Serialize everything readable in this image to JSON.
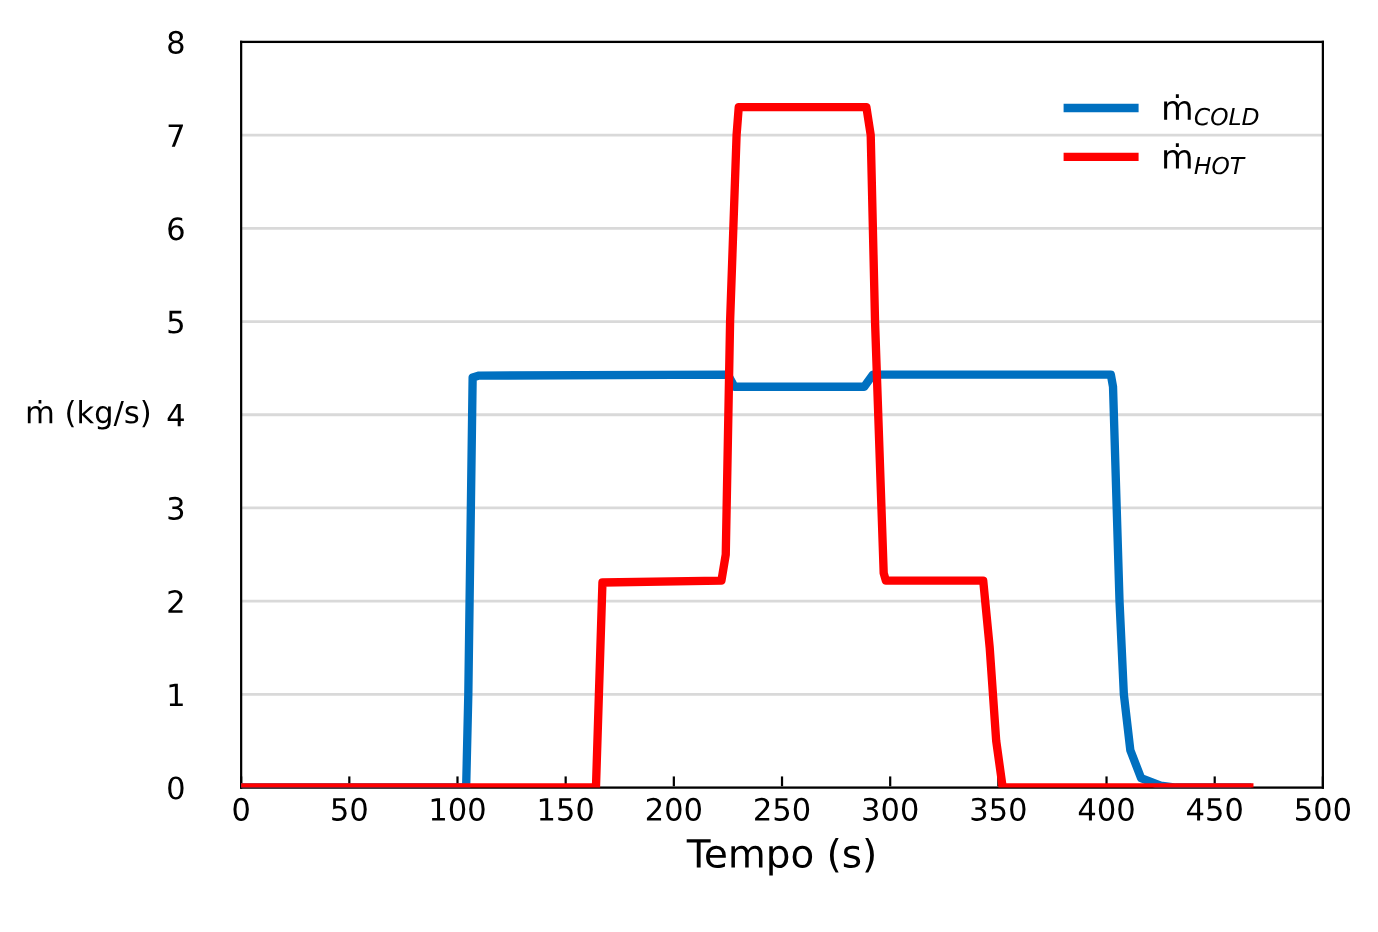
{
  "chart_data": {
    "type": "line",
    "xlabel": "Tempo (s)",
    "ylabel": "ṁ (kg/s)",
    "xlim": [
      0,
      500
    ],
    "xticks": [
      0,
      50,
      100,
      150,
      200,
      250,
      300,
      350,
      400,
      450,
      500
    ],
    "ylim": [
      0,
      8
    ],
    "yticks": [
      0,
      1,
      2,
      3,
      4,
      5,
      6,
      7,
      8
    ],
    "grid": "y",
    "legend": "top right",
    "marker": "none",
    "line_style": "solid",
    "series": [
      {
        "name": "ṁ$_{COLD}$",
        "color": "#0070c0",
        "x": [
          0,
          104,
          105,
          107,
          110,
          225,
          228,
          288,
          292,
          402,
          403,
          406,
          408,
          411,
          416,
          425,
          432,
          465
        ],
        "values": [
          0,
          0,
          1,
          4.4,
          4.42,
          4.43,
          4.3,
          4.3,
          4.43,
          4.43,
          4.3,
          2,
          1,
          0.4,
          0.1,
          0.02,
          0,
          0
        ]
      },
      {
        "name": "ṁ$_{HOT}$",
        "color": "#ff0000",
        "x": [
          0,
          164,
          167,
          222,
          224,
          226,
          229,
          230,
          289,
          291,
          293,
          297,
          298,
          343,
          346,
          349,
          352,
          466
        ],
        "values": [
          0,
          0,
          2.2,
          2.22,
          2.5,
          5,
          7,
          7.3,
          7.3,
          7,
          5,
          2.3,
          2.22,
          2.22,
          1.5,
          0.5,
          0,
          0
        ]
      }
    ]
  }
}
